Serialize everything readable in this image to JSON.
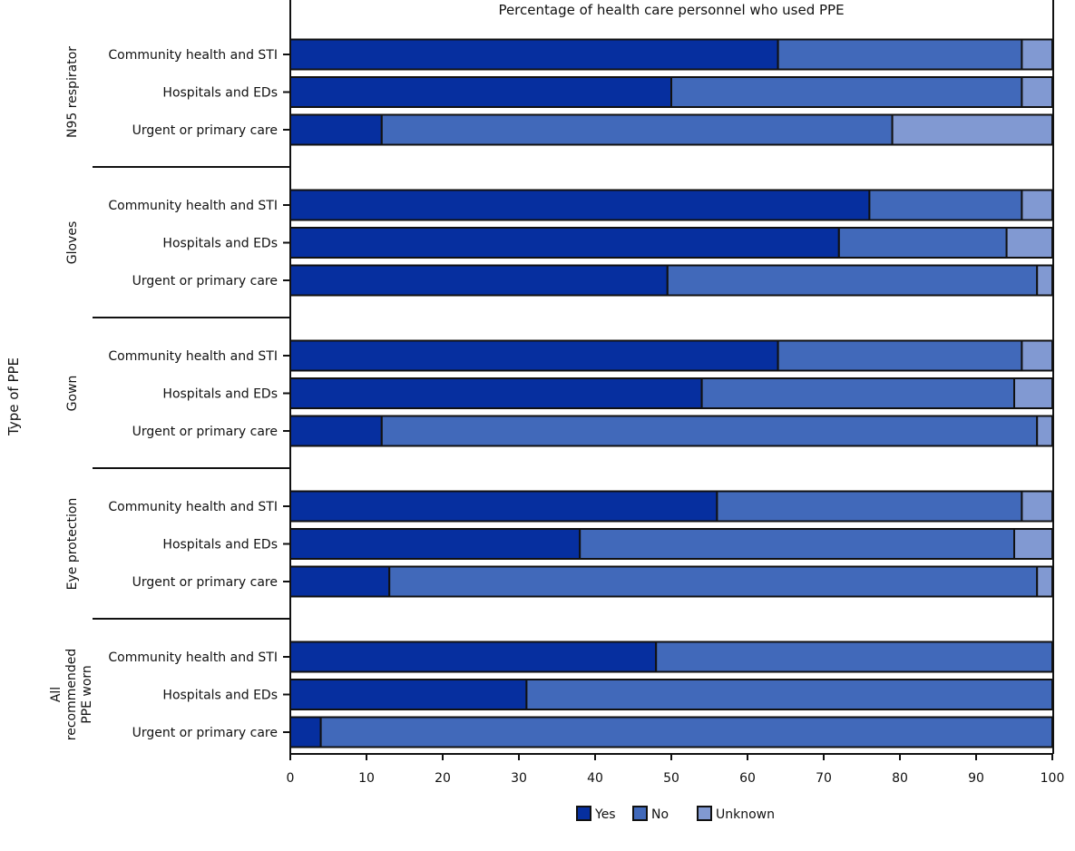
{
  "chart_data": {
    "type": "bar",
    "orientation": "horizontal",
    "stacked": true,
    "title": "Percentage of health care personnel who used PPE",
    "xlabel": "",
    "ylabel": "Type of PPE",
    "xlim": [
      0,
      100
    ],
    "xticks": [
      0,
      10,
      20,
      30,
      40,
      50,
      60,
      70,
      80,
      90,
      100
    ],
    "grid": false,
    "legend": {
      "placement": "bottom",
      "entries": [
        "Yes",
        "No",
        "Unknown"
      ]
    },
    "colors": {
      "Yes": "#062f9f",
      "No": "#4169ba",
      "Unknown": "#8199d2"
    },
    "categories": [
      "Community health and STI",
      "Hospitals and EDs",
      "Urgent or primary care"
    ],
    "groups": [
      {
        "name": "N95 respirator",
        "rows": [
          {
            "category": "Community health and STI",
            "Yes": 64,
            "No": 32,
            "Unknown": 4
          },
          {
            "category": "Hospitals and EDs",
            "Yes": 50,
            "No": 46,
            "Unknown": 4
          },
          {
            "category": "Urgent or primary care",
            "Yes": 12,
            "No": 67,
            "Unknown": 21
          }
        ]
      },
      {
        "name": "Gloves",
        "rows": [
          {
            "category": "Community health and STI",
            "Yes": 76,
            "No": 20,
            "Unknown": 4
          },
          {
            "category": "Hospitals and EDs",
            "Yes": 72,
            "No": 22,
            "Unknown": 6
          },
          {
            "category": "Urgent or primary care",
            "Yes": 49.5,
            "No": 48.5,
            "Unknown": 2
          }
        ]
      },
      {
        "name": "Gown",
        "rows": [
          {
            "category": "Community health and STI",
            "Yes": 64,
            "No": 32,
            "Unknown": 4
          },
          {
            "category": "Hospitals and EDs",
            "Yes": 54,
            "No": 41,
            "Unknown": 5
          },
          {
            "category": "Urgent or primary care",
            "Yes": 12,
            "No": 86,
            "Unknown": 2
          }
        ]
      },
      {
        "name": "Eye protection",
        "rows": [
          {
            "category": "Community health and STI",
            "Yes": 56,
            "No": 40,
            "Unknown": 4
          },
          {
            "category": "Hospitals and EDs",
            "Yes": 38,
            "No": 57,
            "Unknown": 5
          },
          {
            "category": "Urgent or primary care",
            "Yes": 13,
            "No": 85,
            "Unknown": 2
          }
        ]
      },
      {
        "name": "All recommended PPE worn",
        "label_lines": [
          "All",
          "recommended",
          "PPE worn"
        ],
        "rows": [
          {
            "category": "Community health and STI",
            "Yes": 48,
            "No": 52,
            "Unknown": 0
          },
          {
            "category": "Hospitals and EDs",
            "Yes": 31,
            "No": 69,
            "Unknown": 0
          },
          {
            "category": "Urgent or primary care",
            "Yes": 4,
            "No": 96,
            "Unknown": 0
          }
        ]
      }
    ]
  }
}
